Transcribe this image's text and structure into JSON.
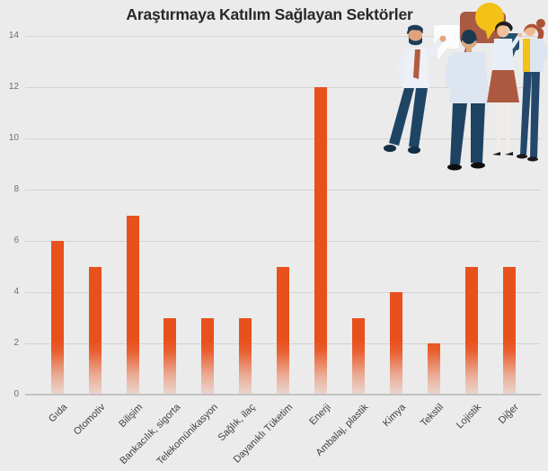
{
  "title": "Araştırmaya Katılım Sağlayan Sektörler",
  "colors": {
    "background": "#ebebeb",
    "bar": "#e8511c",
    "gridline": "#d3d3d3",
    "baseline": "#c2c2c2",
    "bubble_terracotta": "#a95a43",
    "bubble_yellow": "#f3c117",
    "bubble_navy": "#24506f",
    "bubble_white": "#fcfcfd"
  },
  "chart_data": {
    "type": "bar",
    "title": "Araştırmaya Katılım Sağlayan Sektörler",
    "categories": [
      "Gıda",
      "Otomotiv",
      "Bilişim",
      "Bankacılık, sigorta",
      "Telekomünikasyon",
      "Sağlık, ilaç",
      "Dayanıklı Tüketim",
      "Enerji",
      "Ambalaj, plastik",
      "Kimya",
      "Tekstil",
      "Lojistik",
      "Diğer"
    ],
    "values": [
      6,
      5,
      7,
      3,
      3,
      3,
      5,
      12,
      3,
      4,
      2,
      5,
      5
    ],
    "xlabel": "",
    "ylabel": "",
    "ylim": [
      0,
      14
    ],
    "yticks": [
      0,
      2,
      4,
      6,
      8,
      10,
      12,
      14
    ],
    "grid": true,
    "legend": false,
    "x_tick_rotation_deg": 45
  },
  "illustration": {
    "name": "people-conversation-illustration",
    "description": "four people talking with speech bubbles"
  }
}
